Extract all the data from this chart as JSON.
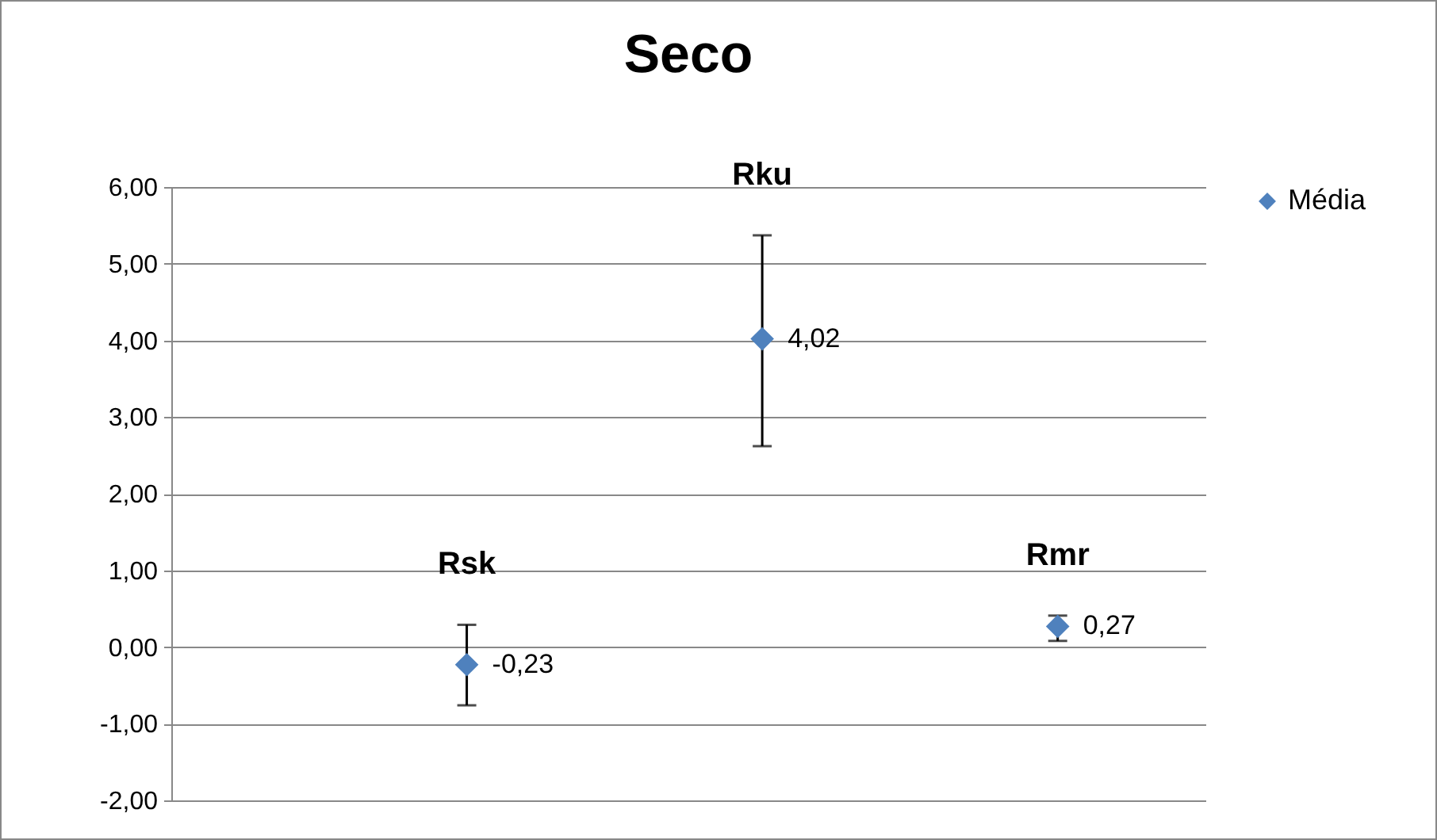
{
  "chart_data": {
    "type": "scatter",
    "title": "Seco",
    "categories": [
      "Rsk",
      "Rku",
      "Rmr"
    ],
    "ylim": [
      -2,
      6
    ],
    "yticks": [
      {
        "value": -2,
        "label": "-2,00"
      },
      {
        "value": -1,
        "label": "-1,00"
      },
      {
        "value": 0,
        "label": "0,00"
      },
      {
        "value": 1,
        "label": "1,00"
      },
      {
        "value": 2,
        "label": "2,00"
      },
      {
        "value": 3,
        "label": "3,00"
      },
      {
        "value": 4,
        "label": "4,00"
      },
      {
        "value": 5,
        "label": "5,00"
      },
      {
        "value": 6,
        "label": "6,00"
      }
    ],
    "series": [
      {
        "name": "Média",
        "color": "#4f81bd",
        "values": [
          -0.23,
          4.02,
          0.27
        ],
        "errors": [
          [
            -0.76,
            0.29
          ],
          [
            2.62,
            5.37
          ],
          [
            0.08,
            0.41
          ]
        ],
        "value_labels": [
          "-0,23",
          "4,02",
          "0,27"
        ]
      }
    ],
    "marker": "diamond",
    "grid": "y",
    "legend": "right",
    "tick_labels": "y"
  }
}
